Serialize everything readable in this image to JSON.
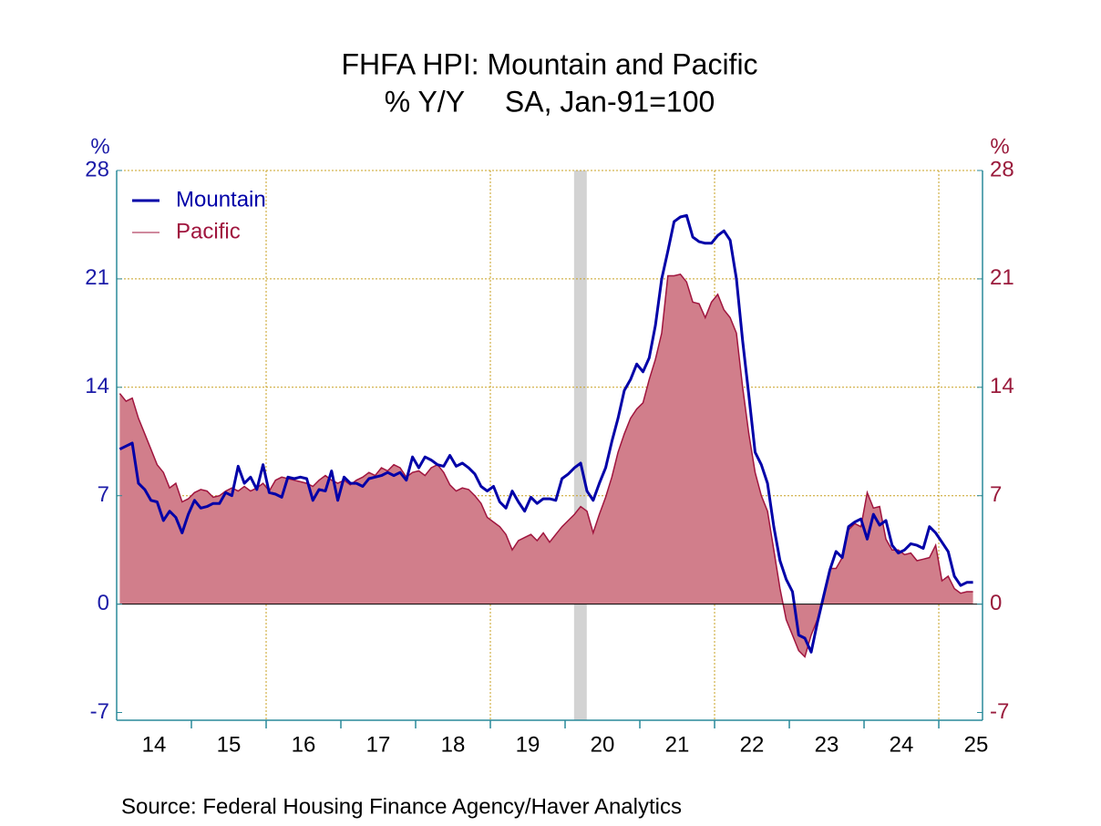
{
  "chart_data": {
    "type": "line-area",
    "title": "FHFA HPI: Mountain and Pacific",
    "subtitle": "% Y/Y     SA, Jan-91=100",
    "y_label": "%",
    "y2_label": "%",
    "source": "Source:  Federal Housing Finance Agency/Haver Analytics",
    "x": [
      2014.042,
      2014.125,
      2014.208,
      2014.292,
      2014.375,
      2014.458,
      2014.542,
      2014.625,
      2014.708,
      2014.792,
      2014.875,
      2014.958,
      2015.042,
      2015.125,
      2015.208,
      2015.292,
      2015.375,
      2015.458,
      2015.542,
      2015.625,
      2015.708,
      2015.792,
      2015.875,
      2015.958,
      2016.042,
      2016.125,
      2016.208,
      2016.292,
      2016.375,
      2016.458,
      2016.542,
      2016.625,
      2016.708,
      2016.792,
      2016.875,
      2016.958,
      2017.042,
      2017.125,
      2017.208,
      2017.292,
      2017.375,
      2017.458,
      2017.542,
      2017.625,
      2017.708,
      2017.792,
      2017.875,
      2017.958,
      2018.042,
      2018.125,
      2018.208,
      2018.292,
      2018.375,
      2018.458,
      2018.542,
      2018.625,
      2018.708,
      2018.792,
      2018.875,
      2018.958,
      2019.042,
      2019.125,
      2019.208,
      2019.292,
      2019.375,
      2019.458,
      2019.542,
      2019.625,
      2019.708,
      2019.792,
      2019.875,
      2019.958,
      2020.042,
      2020.125,
      2020.208,
      2020.292,
      2020.375,
      2020.458,
      2020.542,
      2020.625,
      2020.708,
      2020.792,
      2020.875,
      2020.958,
      2021.042,
      2021.125,
      2021.208,
      2021.292,
      2021.375,
      2021.458,
      2021.542,
      2021.625,
      2021.708,
      2021.792,
      2021.875,
      2021.958,
      2022.042,
      2022.125,
      2022.208,
      2022.292,
      2022.375,
      2022.458,
      2022.542,
      2022.625,
      2022.708,
      2022.792,
      2022.875,
      2022.958,
      2023.042,
      2023.125,
      2023.208,
      2023.292,
      2023.375,
      2023.458,
      2023.542,
      2023.625,
      2023.708,
      2023.792,
      2023.875,
      2023.958,
      2024.042,
      2024.125,
      2024.208,
      2024.292,
      2024.375,
      2024.458,
      2024.542,
      2024.625,
      2024.708,
      2024.792,
      2024.875,
      2024.958,
      2025.042,
      2025.125,
      2025.208,
      2025.292,
      2025.375,
      2025.458
    ],
    "series": [
      {
        "name": "Pacific",
        "color": "#a0153e",
        "fill": "#d17e8b",
        "axis": "y2",
        "values": [
          13.6,
          13.1,
          13.3,
          12.0,
          11.0,
          10.0,
          9.0,
          8.5,
          7.5,
          7.8,
          6.6,
          6.8,
          7.2,
          7.4,
          7.3,
          6.9,
          7.0,
          7.3,
          7.5,
          7.3,
          7.6,
          7.3,
          7.5,
          7.8,
          7.3,
          8.0,
          8.2,
          8.1,
          8.0,
          7.9,
          7.8,
          7.6,
          8.0,
          8.3,
          8.0,
          7.8,
          8.0,
          7.7,
          8.0,
          8.2,
          8.5,
          8.3,
          8.8,
          8.6,
          9.0,
          8.8,
          8.2,
          8.5,
          8.6,
          8.3,
          8.8,
          9.0,
          8.5,
          7.7,
          7.3,
          7.5,
          7.4,
          7.0,
          6.5,
          5.6,
          5.3,
          5.0,
          4.5,
          3.5,
          4.1,
          4.3,
          4.5,
          4.1,
          4.6,
          4.0,
          4.5,
          5.0,
          5.4,
          5.8,
          6.3,
          6.0,
          4.6,
          5.8,
          6.9,
          8.2,
          9.8,
          11.0,
          12.0,
          12.6,
          13.0,
          14.5,
          15.8,
          17.5,
          21.2,
          21.2,
          21.3,
          20.8,
          19.5,
          19.4,
          18.5,
          19.5,
          20.0,
          19.0,
          18.5,
          17.5,
          14.0,
          11.0,
          8.5,
          7.0,
          6.0,
          3.5,
          1.0,
          -1.0,
          -2.0,
          -3.0,
          -3.4,
          -2.0,
          -1.0,
          0.5,
          2.3,
          2.3,
          3.0,
          4.8,
          5.2,
          5.0,
          7.2,
          6.2,
          6.3,
          4.2,
          3.5,
          3.5,
          3.2,
          3.3,
          2.8,
          2.9,
          3.0,
          3.8,
          1.5,
          1.8,
          1.0,
          0.7,
          0.8,
          0.8
        ]
      },
      {
        "name": "Mountain",
        "color": "#0000a8",
        "axis": "y",
        "values": [
          10.0,
          10.2,
          10.4,
          7.8,
          7.4,
          6.7,
          6.6,
          5.4,
          6.0,
          5.6,
          4.6,
          5.8,
          6.7,
          6.2,
          6.3,
          6.5,
          6.5,
          7.2,
          7.0,
          8.9,
          7.8,
          8.2,
          7.4,
          9.0,
          7.2,
          7.1,
          6.9,
          8.2,
          8.1,
          8.2,
          8.1,
          6.7,
          7.4,
          7.3,
          8.6,
          6.7,
          8.2,
          7.8,
          7.8,
          7.6,
          8.1,
          8.2,
          8.3,
          8.5,
          8.3,
          8.5,
          8.0,
          9.5,
          8.8,
          9.5,
          9.3,
          9.0,
          8.9,
          9.6,
          8.9,
          9.1,
          8.8,
          8.4,
          7.6,
          7.3,
          7.6,
          6.6,
          6.2,
          7.3,
          6.6,
          6.0,
          6.9,
          6.5,
          6.8,
          6.8,
          6.7,
          8.1,
          8.4,
          8.8,
          9.1,
          7.3,
          6.7,
          7.8,
          8.8,
          10.5,
          12.0,
          13.8,
          14.5,
          15.5,
          15.0,
          15.9,
          18.0,
          21.0,
          22.8,
          24.7,
          25.0,
          25.1,
          23.7,
          23.4,
          23.3,
          23.3,
          23.8,
          24.1,
          23.5,
          21.0,
          17.0,
          13.5,
          9.8,
          9.0,
          7.8,
          5.0,
          2.8,
          1.6,
          0.8,
          -2.0,
          -2.2,
          -3.1,
          -1.2,
          0.5,
          2.2,
          3.4,
          3.0,
          5.0,
          5.3,
          5.5,
          4.2,
          5.8,
          5.1,
          5.4,
          3.8,
          3.3,
          3.5,
          3.9,
          3.8,
          3.6,
          5.0,
          4.6,
          4.0,
          3.4,
          1.8,
          1.2,
          1.4,
          1.4
        ]
      }
    ],
    "legend_order": [
      "Mountain",
      "Pacific"
    ],
    "legend": "upper-left",
    "xlim": [
      2014,
      2025.585
    ],
    "xticks": [
      {
        "value": 2014.5,
        "label": "14"
      },
      {
        "value": 2015.5,
        "label": "15"
      },
      {
        "value": 2016.5,
        "label": "16"
      },
      {
        "value": 2017.5,
        "label": "17"
      },
      {
        "value": 2018.5,
        "label": "18"
      },
      {
        "value": 2019.5,
        "label": "19"
      },
      {
        "value": 2020.5,
        "label": "20"
      },
      {
        "value": 2021.5,
        "label": "21"
      },
      {
        "value": 2022.5,
        "label": "22"
      },
      {
        "value": 2023.5,
        "label": "23"
      },
      {
        "value": 2024.5,
        "label": "24"
      },
      {
        "value": 2025.5,
        "label": "25"
      }
    ],
    "xminor": [
      2015,
      2016,
      2017,
      2018,
      2019,
      2020,
      2021,
      2022,
      2023,
      2024,
      2025
    ],
    "xgrid": [
      2016,
      2019,
      2022,
      2025
    ],
    "shading": [
      [
        2020.12,
        2020.29
      ]
    ],
    "ylim": [
      -7.5,
      28
    ],
    "yticks": [
      28,
      21,
      14,
      7,
      0,
      -7
    ],
    "y2lim": [
      -7.5,
      28
    ],
    "y2ticks": [
      28,
      21,
      14,
      7,
      0,
      -7
    ],
    "ygrid": [
      28,
      21,
      14,
      7
    ],
    "y_color": "#1c1ca8",
    "y2_color": "#9a1b3c"
  }
}
